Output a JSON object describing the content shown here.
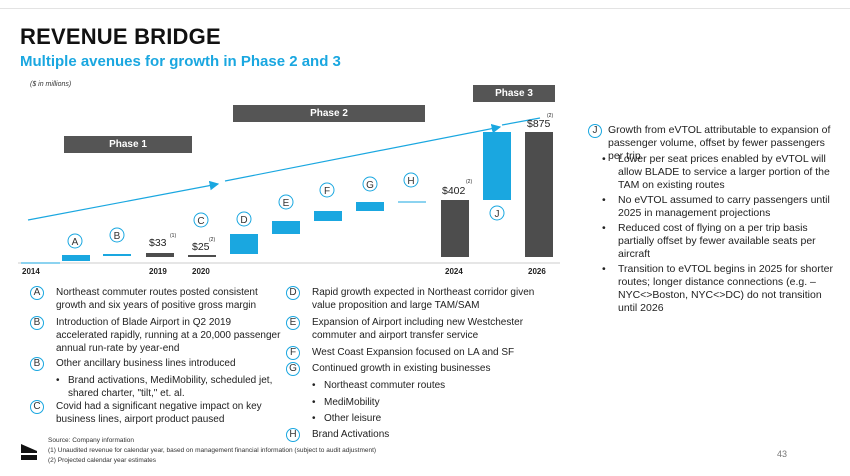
{
  "header": {
    "title": "REVENUE BRIDGE",
    "subtitle": "Multiple avenues for growth in Phase 2 and 3",
    "units": "($ in millions)"
  },
  "phases": [
    "Phase 1",
    "Phase 2",
    "Phase 3"
  ],
  "chart_data": {
    "type": "bar",
    "subtype": "waterfall",
    "title": "Revenue Bridge",
    "units": "$ in millions",
    "x_axis_labels": [
      "2014",
      "2019",
      "2020",
      "2024",
      "2026"
    ],
    "totals": [
      {
        "label": "$33",
        "value": 33,
        "footnote": "(1)",
        "year": "2019"
      },
      {
        "label": "$25",
        "value": 25,
        "footnote": "(2)",
        "year": "2020"
      },
      {
        "label": "$402",
        "value": 402,
        "footnote": "(2)",
        "year": "2024"
      },
      {
        "label": "$875",
        "value": 875,
        "footnote": "(2)",
        "year": "2026"
      }
    ],
    "step_letters": [
      "A",
      "B",
      "C",
      "D",
      "E",
      "F",
      "G",
      "H",
      "J"
    ]
  },
  "left_notes": {
    "A": "Northeast commuter routes posted consistent growth and six years of positive gross margin",
    "B1": "Introduction of Blade Airport in Q2 2019 accelerated rapidly, running at a 20,000 passenger annual run-rate by year-end",
    "B2": "Other ancillary business lines introduced",
    "B2_sub": "Brand activations, MediMobility, scheduled jet, shared charter, \"tilt,\" et. al.",
    "C": "Covid had a significant negative impact on key business lines, airport product paused"
  },
  "mid_notes": {
    "D": "Rapid growth expected in Northeast corridor given value proposition and large TAM/SAM",
    "E": "Expansion of Airport including new Westchester commuter and airport transfer service",
    "F": "West Coast Expansion focused on LA and SF",
    "G": "Continued growth in existing businesses",
    "G_sub": [
      "Northeast commuter routes",
      "MediMobility",
      "Other leisure"
    ],
    "H": "Brand Activations"
  },
  "right_note": {
    "letter": "J",
    "text": "Growth from eVTOL attributable to expansion of passenger volume, offset by fewer passengers per trip",
    "bullets": [
      "Lower per seat prices enabled by eVTOL will allow BLADE to service a larger portion of the TAM on existing routes",
      "No eVTOL assumed to carry passengers until 2025 in management projections",
      "Reduced cost of flying on a per trip basis partially offset by fewer available seats per aircraft",
      "Transition to eVTOL begins in 2025 for shorter routes; longer distance connections (e.g. – NYC<>Boston, NYC<>DC) do not transition until 2026"
    ]
  },
  "footer": {
    "source": "Source: Company information",
    "fn1": "(1)  Unaudited revenue for calendar year, based on management financial information (subject to audit adjustment)",
    "fn2": "(2)  Projected calendar year estimates",
    "page": "43"
  },
  "colors": {
    "accent": "#1aa7e0",
    "gray": "#4d4d4d",
    "phase": "#555555"
  }
}
